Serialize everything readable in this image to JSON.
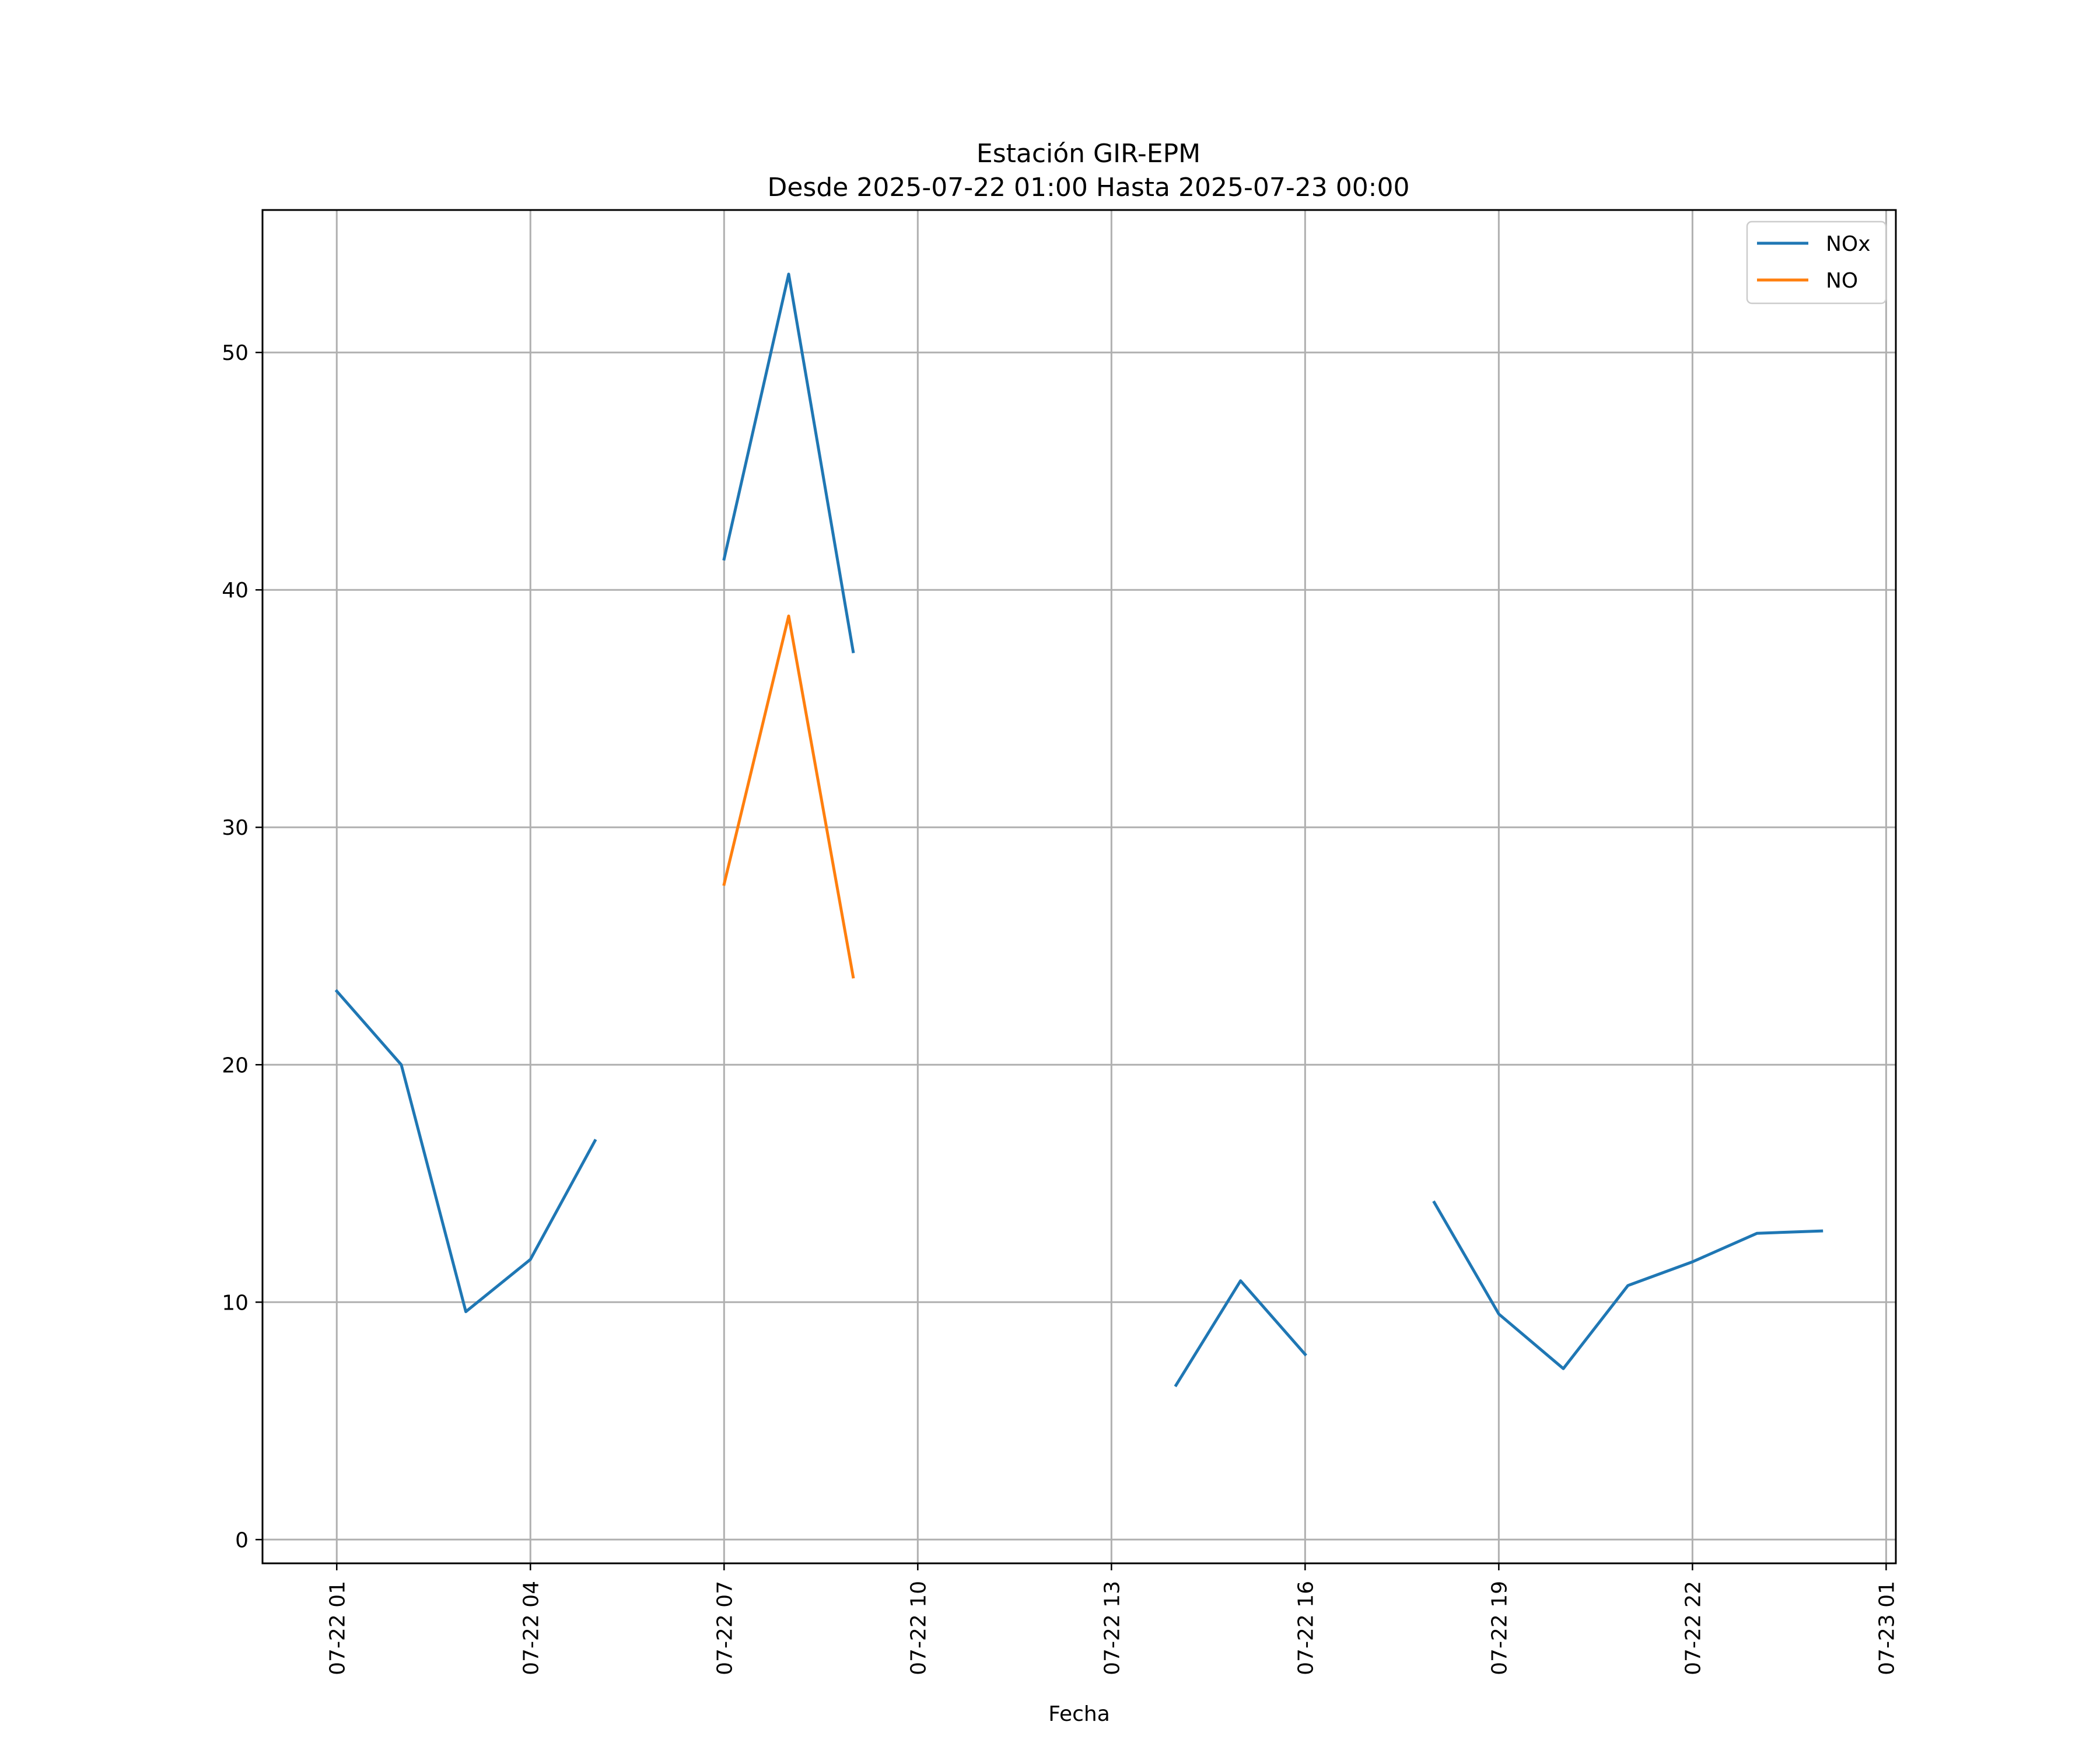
{
  "chart_data": {
    "type": "line",
    "title": "Estación GIR-EPM",
    "subtitle": "Desde 2025-07-22 01:00 Hasta 2025-07-23 00:00",
    "xlabel": "Fecha",
    "ylabel": "",
    "xlim": [
      "2025-07-21 23:51",
      "2025-07-23 01:09"
    ],
    "ylim": [
      -1,
      56
    ],
    "x_ticks": [
      "07-22 01",
      "07-22 04",
      "07-22 07",
      "07-22 10",
      "07-22 13",
      "07-22 16",
      "07-22 19",
      "07-22 22",
      "07-23 01"
    ],
    "x_tick_values": [
      "2025-07-22 01:00",
      "2025-07-22 04:00",
      "2025-07-22 07:00",
      "2025-07-22 10:00",
      "2025-07-22 13:00",
      "2025-07-22 16:00",
      "2025-07-22 19:00",
      "2025-07-22 22:00",
      "2025-07-23 01:00"
    ],
    "y_ticks": [
      0,
      10,
      20,
      30,
      40,
      50
    ],
    "grid": true,
    "legend_position": "top-right",
    "series": [
      {
        "name": "NOx",
        "color": "#1f77b4",
        "points": [
          [
            "2025-07-22 01:00",
            23.1
          ],
          [
            "2025-07-22 02:00",
            20.0
          ],
          [
            "2025-07-22 03:00",
            9.6
          ],
          [
            "2025-07-22 04:00",
            11.8
          ],
          [
            "2025-07-22 05:00",
            16.8
          ],
          [
            "2025-07-22 06:00",
            null
          ],
          [
            "2025-07-22 07:00",
            41.3
          ],
          [
            "2025-07-22 08:00",
            53.3
          ],
          [
            "2025-07-22 09:00",
            37.4
          ],
          [
            "2025-07-22 10:00",
            null
          ],
          [
            "2025-07-22 11:00",
            null
          ],
          [
            "2025-07-22 12:00",
            null
          ],
          [
            "2025-07-22 13:00",
            null
          ],
          [
            "2025-07-22 14:00",
            6.5
          ],
          [
            "2025-07-22 15:00",
            10.9
          ],
          [
            "2025-07-22 16:00",
            7.8
          ],
          [
            "2025-07-22 17:00",
            null
          ],
          [
            "2025-07-22 18:00",
            14.2
          ],
          [
            "2025-07-22 19:00",
            9.5
          ],
          [
            "2025-07-22 20:00",
            7.2
          ],
          [
            "2025-07-22 21:00",
            10.7
          ],
          [
            "2025-07-22 22:00",
            11.7
          ],
          [
            "2025-07-22 23:00",
            12.9
          ],
          [
            "2025-07-23 00:00",
            13.0
          ]
        ]
      },
      {
        "name": "NO",
        "color": "#ff7f0e",
        "points": [
          [
            "2025-07-22 07:00",
            27.6
          ],
          [
            "2025-07-22 08:00",
            38.9
          ],
          [
            "2025-07-22 09:00",
            23.7
          ]
        ]
      }
    ]
  }
}
